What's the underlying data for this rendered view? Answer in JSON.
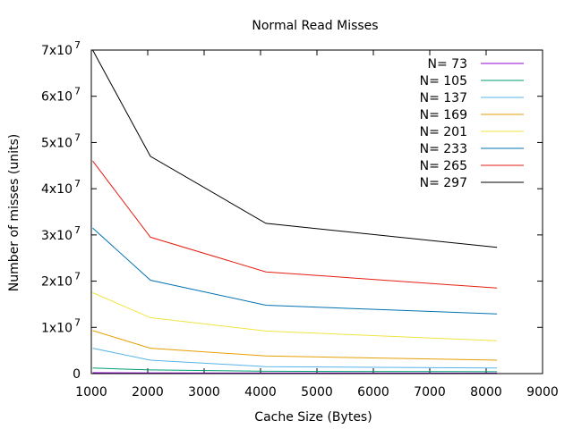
{
  "chart_data": {
    "type": "line",
    "title": "Normal Read Misses",
    "xlabel": "Cache Size (Bytes)",
    "ylabel": "Number of misses (units)",
    "xlim": [
      1000,
      9000
    ],
    "ylim": [
      0,
      70000000
    ],
    "x_ticks": [
      1000,
      2000,
      3000,
      4000,
      5000,
      6000,
      7000,
      8000,
      9000
    ],
    "x_tick_labels": [
      "1000",
      "2000",
      "3000",
      "4000",
      "5000",
      "6000",
      "7000",
      "8000",
      "9000"
    ],
    "y_ticks": [
      {
        "value": 0,
        "mantissa": "0",
        "exponent": ""
      },
      {
        "value": 10000000,
        "mantissa": "1x10",
        "exponent": "7"
      },
      {
        "value": 20000000,
        "mantissa": "2x10",
        "exponent": "7"
      },
      {
        "value": 30000000,
        "mantissa": "3x10",
        "exponent": "7"
      },
      {
        "value": 40000000,
        "mantissa": "4x10",
        "exponent": "7"
      },
      {
        "value": 50000000,
        "mantissa": "5x10",
        "exponent": "7"
      },
      {
        "value": 60000000,
        "mantissa": "6x10",
        "exponent": "7"
      },
      {
        "value": 70000000,
        "mantissa": "7x10",
        "exponent": "7"
      }
    ],
    "x": [
      1024,
      2048,
      4096,
      8192
    ],
    "grid": false,
    "legend_position": "top-right",
    "series": [
      {
        "name": "N= 73",
        "color": "#9400d3",
        "values": [
          200000,
          150000,
          120000,
          100000
        ]
      },
      {
        "name": "N= 105",
        "color": "#009e73",
        "values": [
          1200000,
          800000,
          500000,
          400000
        ]
      },
      {
        "name": "N= 137",
        "color": "#56b4e9",
        "values": [
          5500000,
          2900000,
          1500000,
          1200000
        ]
      },
      {
        "name": "N= 169",
        "color": "#e69f00",
        "values": [
          9300000,
          5500000,
          3800000,
          2900000
        ]
      },
      {
        "name": "N= 201",
        "color": "#f0e442",
        "values": [
          17500000,
          12100000,
          9200000,
          7100000
        ]
      },
      {
        "name": "N= 233",
        "color": "#0072b2",
        "values": [
          31500000,
          20200000,
          14800000,
          12900000
        ]
      },
      {
        "name": "N= 265",
        "color": "#e51e10",
        "values": [
          46000000,
          29500000,
          22000000,
          18500000
        ]
      },
      {
        "name": "N= 297",
        "color": "#000000",
        "values": [
          70000000,
          47000000,
          32500000,
          27300000
        ]
      }
    ]
  }
}
